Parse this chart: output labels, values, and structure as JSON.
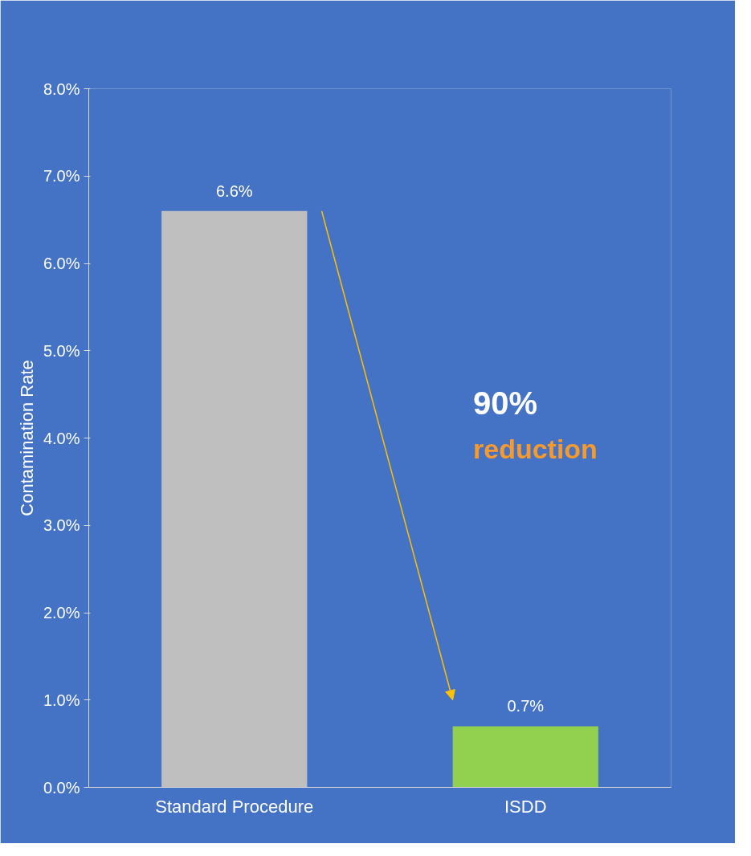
{
  "chart_data": {
    "type": "bar",
    "ylabel": "Contamination Rate",
    "categories": [
      "Standard Procedure",
      "ISDD"
    ],
    "values": [
      6.6,
      0.7
    ],
    "colors": [
      "#bfbfbf",
      "#92d050"
    ],
    "value_labels": [
      "6.6%",
      "0.7%"
    ],
    "ylim": [
      0,
      8
    ],
    "yticks": [
      {
        "value": 0,
        "label": "0.0%"
      },
      {
        "value": 1,
        "label": "1.0%"
      },
      {
        "value": 2,
        "label": "2.0%"
      },
      {
        "value": 3,
        "label": "3.0%"
      },
      {
        "value": 4,
        "label": "4.0%"
      },
      {
        "value": 5,
        "label": "5.0%"
      },
      {
        "value": 6,
        "label": "6.0%"
      },
      {
        "value": 7,
        "label": "7.0%"
      },
      {
        "value": 8,
        "label": "8.0%"
      }
    ],
    "annotations": [
      "90%",
      "reduction"
    ],
    "grid": false
  }
}
